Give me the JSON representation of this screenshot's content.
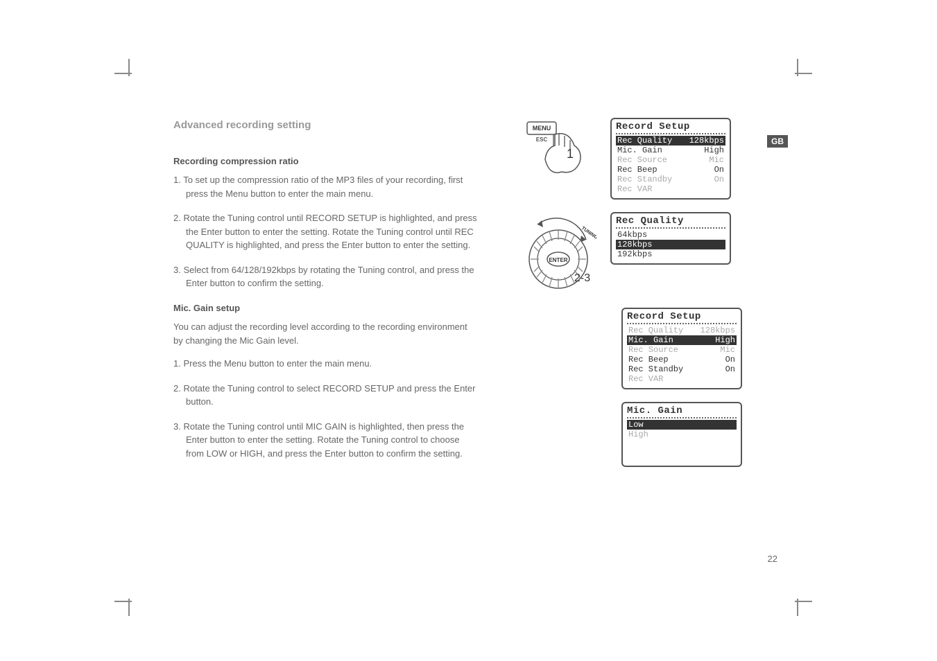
{
  "gb_label": "GB",
  "page_number": "22",
  "main_title": "Advanced recording setting",
  "section1_title": "Recording compression ratio",
  "section1_steps": [
    "1. To set up the compression ratio of the MP3 files of your recording, first press the Menu button to enter the main menu.",
    "2. Rotate the Tuning control until RECORD SETUP is highlighted, and press the Enter button to enter the setting. Rotate the Tuning control until REC QUALITY is highlighted, and press the Enter button to enter the setting.",
    "3. Select from 64/128/192kbps by rotating the Tuning control, and press the Enter button to confirm the setting."
  ],
  "section2_title": "Mic. Gain setup",
  "section2_intro": "You can adjust the recording level according to the recording environment by changing the Mic Gain level.",
  "section2_steps": [
    "1. Press the Menu button to enter the main menu.",
    "2. Rotate the Tuning control to select RECORD SETUP and press the Enter button.",
    "3. Rotate the Tuning control until MIC GAIN is highlighted, then press the Enter button to enter the setting. Rotate the Tuning control to choose from LOW or HIGH, and press the Enter button to confirm the setting."
  ],
  "knob1": {
    "menu": "MENU",
    "esc": "ESC",
    "number": "1"
  },
  "knob2": {
    "enter": "ENTER",
    "tuning": "TUNING",
    "number": "2-3"
  },
  "lcd1": {
    "title": "Record Setup",
    "rows": [
      {
        "l": "Rec Quality",
        "r": "128kbps",
        "hl": true
      },
      {
        "l": "Mic. Gain",
        "r": "High"
      },
      {
        "l": "Rec Source",
        "r": "Mic",
        "gr": true
      },
      {
        "l": "Rec Beep",
        "r": "On"
      },
      {
        "l": "Rec Standby",
        "r": "On",
        "gr": true
      },
      {
        "l": "Rec VAR",
        "r": "",
        "gr": true
      }
    ]
  },
  "lcd2": {
    "title": "Rec Quality",
    "rows": [
      {
        "l": "64kbps",
        "r": ""
      },
      {
        "l": "128kbps",
        "r": "",
        "hl": true
      },
      {
        "l": "192kbps",
        "r": ""
      }
    ]
  },
  "lcd3": {
    "title": "Record Setup",
    "rows": [
      {
        "l": "Rec Quality",
        "r": "128kbps",
        "gr": true
      },
      {
        "l": "Mic. Gain",
        "r": "High",
        "hl": true
      },
      {
        "l": "Rec Source",
        "r": "Mic",
        "gr": true
      },
      {
        "l": "Rec Beep",
        "r": "On"
      },
      {
        "l": "Rec Standby",
        "r": "On"
      },
      {
        "l": "Rec VAR",
        "r": "",
        "gr": true
      }
    ]
  },
  "lcd4": {
    "title": "Mic. Gain",
    "rows": [
      {
        "l": "Low",
        "r": "",
        "hl": true
      },
      {
        "l": "High",
        "r": "",
        "gr": true
      }
    ]
  }
}
